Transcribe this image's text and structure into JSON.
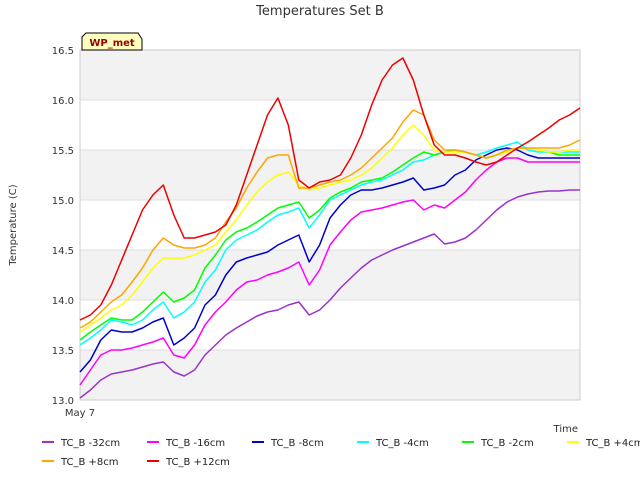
{
  "chart_data": {
    "type": "line",
    "title": "Temperatures Set B",
    "xlabel": "Time",
    "ylabel": "Temperature (C)",
    "x_tick_label": "May 7",
    "badge": "WP_met",
    "ylim": [
      13.0,
      16.5
    ],
    "yticks": [
      "13.0",
      "13.5",
      "14.0",
      "14.5",
      "15.0",
      "15.5",
      "16.0",
      "16.5"
    ],
    "grid": "horizontal bands",
    "legend_position": "bottom",
    "x": [
      0,
      0.5,
      1,
      1.5,
      2,
      2.5,
      3,
      3.5,
      4,
      4.5,
      5,
      5.5,
      6,
      6.5,
      7,
      7.5,
      8,
      8.5,
      9,
      9.5,
      10,
      10.5,
      11,
      11.5,
      12,
      12.5,
      13,
      13.5,
      14,
      14.5,
      15,
      15.5,
      16,
      16.5,
      17,
      17.5,
      18,
      18.5,
      19,
      19.5,
      20,
      20.5,
      21,
      21.5,
      22,
      22.5,
      23,
      23.5,
      24
    ],
    "series": [
      {
        "name": "TC_B -32cm",
        "color": "#9932cc",
        "values": [
          13.02,
          13.1,
          13.2,
          13.26,
          13.28,
          13.3,
          13.33,
          13.36,
          13.38,
          13.28,
          13.24,
          13.3,
          13.45,
          13.55,
          13.65,
          13.72,
          13.78,
          13.84,
          13.88,
          13.9,
          13.95,
          13.98,
          13.85,
          13.9,
          14.0,
          14.12,
          14.22,
          14.32,
          14.4,
          14.45,
          14.5,
          14.54,
          14.58,
          14.62,
          14.66,
          14.56,
          14.58,
          14.62,
          14.7,
          14.8,
          14.9,
          14.98,
          15.03,
          15.06,
          15.08,
          15.09,
          15.09,
          15.1,
          15.1
        ]
      },
      {
        "name": "TC_B -16cm",
        "color": "#ff00ff",
        "values": [
          13.15,
          13.3,
          13.45,
          13.5,
          13.5,
          13.52,
          13.55,
          13.58,
          13.62,
          13.45,
          13.42,
          13.55,
          13.75,
          13.88,
          13.98,
          14.1,
          14.18,
          14.2,
          14.25,
          14.28,
          14.32,
          14.38,
          14.15,
          14.3,
          14.55,
          14.68,
          14.8,
          14.88,
          14.9,
          14.92,
          14.95,
          14.98,
          15.0,
          14.9,
          14.95,
          14.92,
          15.0,
          15.08,
          15.2,
          15.3,
          15.38,
          15.42,
          15.42,
          15.38,
          15.38,
          15.38,
          15.38,
          15.38,
          15.38
        ]
      },
      {
        "name": "TC_B -8cm",
        "color": "#0000cd",
        "values": [
          13.28,
          13.4,
          13.6,
          13.7,
          13.68,
          13.68,
          13.72,
          13.78,
          13.82,
          13.55,
          13.62,
          13.72,
          13.95,
          14.05,
          14.25,
          14.38,
          14.42,
          14.45,
          14.48,
          14.55,
          14.6,
          14.65,
          14.38,
          14.55,
          14.82,
          14.95,
          15.05,
          15.1,
          15.1,
          15.12,
          15.15,
          15.18,
          15.22,
          15.1,
          15.12,
          15.15,
          15.25,
          15.3,
          15.4,
          15.45,
          15.5,
          15.52,
          15.5,
          15.45,
          15.42,
          15.42,
          15.42,
          15.42,
          15.42
        ]
      },
      {
        "name": "TC_B -4cm",
        "color": "#00ffff",
        "values": [
          13.55,
          13.62,
          13.7,
          13.8,
          13.78,
          13.75,
          13.8,
          13.9,
          13.98,
          13.82,
          13.88,
          13.98,
          14.18,
          14.3,
          14.5,
          14.6,
          14.65,
          14.7,
          14.78,
          14.85,
          14.88,
          14.92,
          14.72,
          14.85,
          15.0,
          15.05,
          15.1,
          15.15,
          15.18,
          15.2,
          15.25,
          15.3,
          15.38,
          15.4,
          15.45,
          15.48,
          15.5,
          15.48,
          15.45,
          15.48,
          15.52,
          15.55,
          15.58,
          15.5,
          15.48,
          15.48,
          15.48,
          15.48,
          15.48
        ]
      },
      {
        "name": "TC_B -2cm",
        "color": "#00ff00",
        "values": [
          13.6,
          13.68,
          13.75,
          13.82,
          13.8,
          13.8,
          13.88,
          13.98,
          14.08,
          13.98,
          14.02,
          14.1,
          14.32,
          14.45,
          14.6,
          14.68,
          14.72,
          14.78,
          14.85,
          14.92,
          14.95,
          14.98,
          14.82,
          14.9,
          15.02,
          15.08,
          15.12,
          15.18,
          15.2,
          15.22,
          15.28,
          15.35,
          15.42,
          15.48,
          15.45,
          15.48,
          15.5,
          15.48,
          15.45,
          15.42,
          15.45,
          15.5,
          15.52,
          15.52,
          15.5,
          15.48,
          15.45,
          15.45,
          15.45
        ]
      },
      {
        "name": "TC_B +4cm",
        "color": "#ffff00",
        "values": [
          13.68,
          13.75,
          13.82,
          13.9,
          13.95,
          14.05,
          14.18,
          14.32,
          14.42,
          14.42,
          14.42,
          14.45,
          14.5,
          14.55,
          14.68,
          14.8,
          14.95,
          15.08,
          15.18,
          15.25,
          15.28,
          15.15,
          15.1,
          15.12,
          15.15,
          15.18,
          15.2,
          15.25,
          15.32,
          15.42,
          15.52,
          15.65,
          15.75,
          15.65,
          15.5,
          15.48,
          15.48,
          15.48,
          15.45,
          15.42,
          15.45,
          15.48,
          15.52,
          15.52,
          15.5,
          15.48,
          15.48,
          15.5,
          15.5
        ]
      },
      {
        "name": "TC_B +8cm",
        "color": "#ffa500",
        "values": [
          13.72,
          13.78,
          13.88,
          13.98,
          14.05,
          14.18,
          14.32,
          14.5,
          14.62,
          14.55,
          14.52,
          14.52,
          14.55,
          14.62,
          14.78,
          14.92,
          15.12,
          15.28,
          15.42,
          15.45,
          15.45,
          15.12,
          15.12,
          15.15,
          15.18,
          15.2,
          15.25,
          15.32,
          15.42,
          15.52,
          15.62,
          15.78,
          15.9,
          15.85,
          15.6,
          15.5,
          15.5,
          15.48,
          15.45,
          15.42,
          15.45,
          15.5,
          15.52,
          15.52,
          15.52,
          15.52,
          15.52,
          15.55,
          15.6
        ]
      },
      {
        "name": "TC_B +12cm",
        "color": "#ee0000",
        "values": [
          13.8,
          13.85,
          13.95,
          14.15,
          14.4,
          14.65,
          14.9,
          15.05,
          15.15,
          14.85,
          14.62,
          14.62,
          14.65,
          14.68,
          14.75,
          14.95,
          15.25,
          15.55,
          15.85,
          16.02,
          15.75,
          15.2,
          15.12,
          15.18,
          15.2,
          15.25,
          15.42,
          15.65,
          15.95,
          16.2,
          16.35,
          16.42,
          16.2,
          15.85,
          15.55,
          15.45,
          15.45,
          15.42,
          15.38,
          15.35,
          15.38,
          15.45,
          15.52,
          15.58,
          15.65,
          15.72,
          15.8,
          15.85,
          15.92
        ]
      }
    ]
  }
}
